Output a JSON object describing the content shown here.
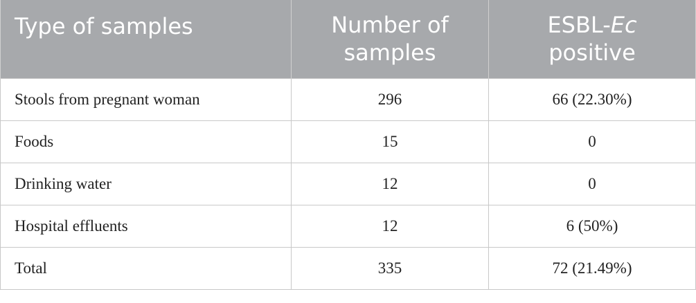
{
  "table": {
    "header": [
      "Type of samples",
      "Number of samples",
      {
        "prefix": "ESBL-",
        "italic": "Ec",
        "suffix": "positive"
      }
    ],
    "rows": [
      [
        "Stools from pregnant woman",
        "296",
        "66 (22.30%)"
      ],
      [
        "Foods",
        "15",
        "0"
      ],
      [
        "Drinking water",
        "12",
        "0"
      ],
      [
        "Hospital effluents",
        "12",
        "6 (50%)"
      ],
      [
        "Total",
        "335",
        "72 (21.49%)"
      ]
    ]
  }
}
